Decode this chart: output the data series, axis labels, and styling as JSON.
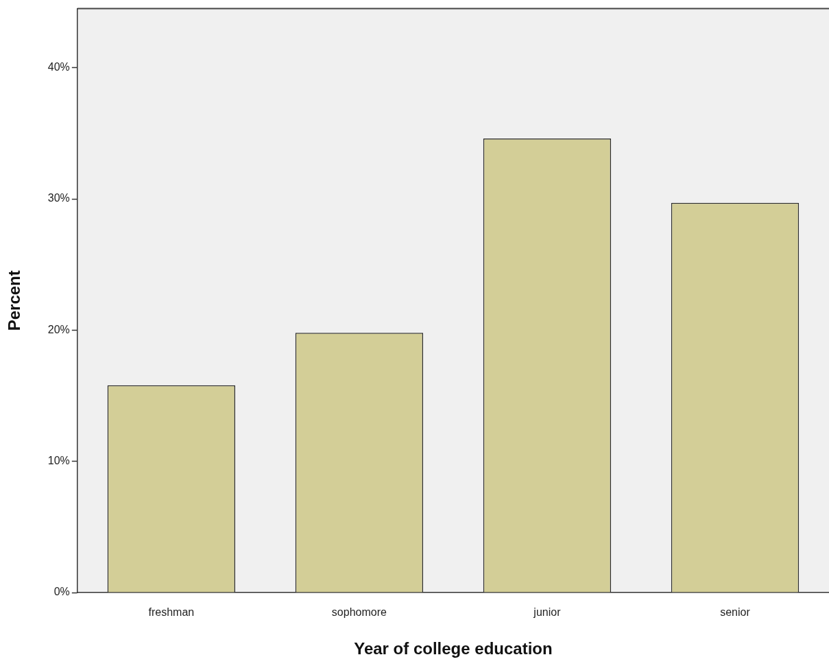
{
  "chart_data": {
    "type": "bar",
    "xlabel": "Year of college education",
    "ylabel": "Percent",
    "categories": [
      "freshman",
      "sophomore",
      "junior",
      "senior"
    ],
    "values": [
      15.8,
      19.8,
      34.6,
      29.7
    ],
    "color": "#d3ce97",
    "ylim": [
      0,
      44.5
    ],
    "yticks": [
      {
        "value": 0,
        "label": "0%"
      },
      {
        "value": 10,
        "label": "10%"
      },
      {
        "value": 20,
        "label": "20%"
      },
      {
        "value": 30,
        "label": "30%"
      },
      {
        "value": 40,
        "label": "40%"
      }
    ],
    "grid": false,
    "legend": false
  }
}
